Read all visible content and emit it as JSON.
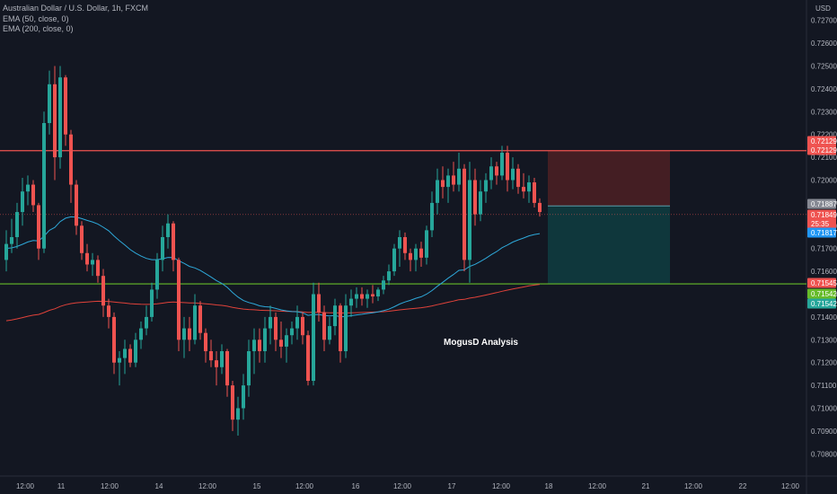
{
  "legend": {
    "symbol": "Australian Dollar / U.S. Dollar, 1h, FXCM",
    "ema50": "EMA (50, close, 0)",
    "ema200": "EMA (200, close, 0)"
  },
  "watermark": "MogusD Analysis",
  "currency": "USD",
  "colors": {
    "background": "#131722",
    "up": "#26a69a",
    "down": "#ef5350",
    "ema50": "#2ea8d9",
    "ema200": "#e0423a",
    "resistance": "#ef5350",
    "support": "#66bb2a",
    "stop_zone": "#4a1f24",
    "target_zone": "#0f3b3f"
  },
  "chart_data": {
    "type": "candlestick",
    "title": "Australian Dollar / U.S. Dollar, 1h, FXCM",
    "y_axis": {
      "min": 0.7075,
      "max": 0.7275,
      "ticks": [
        "0.72700",
        "0.72600",
        "0.72500",
        "0.72400",
        "0.72300",
        "0.72200",
        "0.72100",
        "0.72000",
        "0.71900",
        "0.71800",
        "0.71700",
        "0.71600",
        "0.71500",
        "0.71400",
        "0.71300",
        "0.71200",
        "0.71100",
        "0.71000",
        "0.70900",
        "0.70800"
      ]
    },
    "x_axis": {
      "ticks": [
        "12:00",
        "11",
        "12:00",
        "14",
        "12:00",
        "15",
        "12:00",
        "16",
        "12:00",
        "17",
        "12:00",
        "18",
        "12:00",
        "21",
        "12:00",
        "22",
        "12:00"
      ]
    },
    "levels": [
      {
        "name": "resistance",
        "price": 0.72129
      },
      {
        "name": "support",
        "price": 0.71545
      }
    ],
    "price_tags": [
      {
        "label": "0.72129",
        "price": 0.72129,
        "color": "#ef5350"
      },
      {
        "label": "0.72129",
        "price": 0.72129,
        "color": "#ef5350"
      },
      {
        "label": "0.71887",
        "price": 0.71887,
        "color": "#868993"
      },
      {
        "label": "0.71849",
        "price": 0.71849,
        "color": "#ef5350"
      },
      {
        "label": "25:35",
        "price": 0.71849,
        "color": "#ef5350"
      },
      {
        "label": "0.71817",
        "price": 0.71817,
        "color": "#2196f3"
      },
      {
        "label": "0.71545",
        "price": 0.71545,
        "color": "#ef5350"
      },
      {
        "label": "0.71542",
        "price": 0.71542,
        "color": "#66bb2a"
      },
      {
        "label": "0.71542",
        "price": 0.71542,
        "color": "#26a69a"
      }
    ],
    "position": {
      "type": "short",
      "entry": 0.71887,
      "stop": 0.72129,
      "target": 0.71545
    },
    "candles": [
      {
        "o": 0.7165,
        "h": 0.7178,
        "l": 0.716,
        "c": 0.7172
      },
      {
        "o": 0.7172,
        "h": 0.7183,
        "l": 0.7168,
        "c": 0.7175
      },
      {
        "o": 0.7175,
        "h": 0.719,
        "l": 0.717,
        "c": 0.7186
      },
      {
        "o": 0.7186,
        "h": 0.7201,
        "l": 0.718,
        "c": 0.7195
      },
      {
        "o": 0.7195,
        "h": 0.7202,
        "l": 0.7189,
        "c": 0.7198
      },
      {
        "o": 0.7198,
        "h": 0.72,
        "l": 0.7186,
        "c": 0.7189
      },
      {
        "o": 0.7189,
        "h": 0.719,
        "l": 0.7165,
        "c": 0.717
      },
      {
        "o": 0.717,
        "h": 0.723,
        "l": 0.7168,
        "c": 0.7225
      },
      {
        "o": 0.7225,
        "h": 0.7248,
        "l": 0.722,
        "c": 0.7242
      },
      {
        "o": 0.7242,
        "h": 0.725,
        "l": 0.72,
        "c": 0.721
      },
      {
        "o": 0.721,
        "h": 0.725,
        "l": 0.7205,
        "c": 0.7245
      },
      {
        "o": 0.7245,
        "h": 0.7246,
        "l": 0.7215,
        "c": 0.722
      },
      {
        "o": 0.722,
        "h": 0.7222,
        "l": 0.719,
        "c": 0.7198
      },
      {
        "o": 0.7198,
        "h": 0.72,
        "l": 0.7176,
        "c": 0.718
      },
      {
        "o": 0.718,
        "h": 0.7182,
        "l": 0.7165,
        "c": 0.7168
      },
      {
        "o": 0.7168,
        "h": 0.7172,
        "l": 0.716,
        "c": 0.7163
      },
      {
        "o": 0.7163,
        "h": 0.7168,
        "l": 0.7158,
        "c": 0.7165
      },
      {
        "o": 0.7165,
        "h": 0.7167,
        "l": 0.7155,
        "c": 0.7158
      },
      {
        "o": 0.7158,
        "h": 0.7161,
        "l": 0.714,
        "c": 0.7145
      },
      {
        "o": 0.7145,
        "h": 0.7148,
        "l": 0.7135,
        "c": 0.714
      },
      {
        "o": 0.714,
        "h": 0.7142,
        "l": 0.7115,
        "c": 0.712
      },
      {
        "o": 0.712,
        "h": 0.7125,
        "l": 0.711,
        "c": 0.7122
      },
      {
        "o": 0.7122,
        "h": 0.713,
        "l": 0.7115,
        "c": 0.7126
      },
      {
        "o": 0.7126,
        "h": 0.7128,
        "l": 0.7118,
        "c": 0.712
      },
      {
        "o": 0.712,
        "h": 0.7133,
        "l": 0.7118,
        "c": 0.713
      },
      {
        "o": 0.713,
        "h": 0.7138,
        "l": 0.7126,
        "c": 0.7135
      },
      {
        "o": 0.7135,
        "h": 0.7145,
        "l": 0.7132,
        "c": 0.714
      },
      {
        "o": 0.714,
        "h": 0.7155,
        "l": 0.7138,
        "c": 0.7152
      },
      {
        "o": 0.7152,
        "h": 0.7168,
        "l": 0.7148,
        "c": 0.7165
      },
      {
        "o": 0.7165,
        "h": 0.718,
        "l": 0.716,
        "c": 0.7175
      },
      {
        "o": 0.7175,
        "h": 0.7185,
        "l": 0.717,
        "c": 0.7181
      },
      {
        "o": 0.7181,
        "h": 0.7182,
        "l": 0.716,
        "c": 0.7165
      },
      {
        "o": 0.7165,
        "h": 0.7166,
        "l": 0.7125,
        "c": 0.713
      },
      {
        "o": 0.713,
        "h": 0.714,
        "l": 0.7122,
        "c": 0.7135
      },
      {
        "o": 0.7135,
        "h": 0.714,
        "l": 0.7125,
        "c": 0.713
      },
      {
        "o": 0.713,
        "h": 0.715,
        "l": 0.7128,
        "c": 0.7145
      },
      {
        "o": 0.7145,
        "h": 0.7147,
        "l": 0.713,
        "c": 0.7133
      },
      {
        "o": 0.7133,
        "h": 0.7135,
        "l": 0.712,
        "c": 0.7125
      },
      {
        "o": 0.7125,
        "h": 0.713,
        "l": 0.7118,
        "c": 0.7121
      },
      {
        "o": 0.7121,
        "h": 0.7125,
        "l": 0.711,
        "c": 0.7118
      },
      {
        "o": 0.7118,
        "h": 0.7128,
        "l": 0.7115,
        "c": 0.7125
      },
      {
        "o": 0.7125,
        "h": 0.7126,
        "l": 0.7105,
        "c": 0.711
      },
      {
        "o": 0.711,
        "h": 0.7112,
        "l": 0.709,
        "c": 0.7095
      },
      {
        "o": 0.7095,
        "h": 0.7105,
        "l": 0.7088,
        "c": 0.71
      },
      {
        "o": 0.71,
        "h": 0.7115,
        "l": 0.7095,
        "c": 0.711
      },
      {
        "o": 0.711,
        "h": 0.713,
        "l": 0.7105,
        "c": 0.7125
      },
      {
        "o": 0.7125,
        "h": 0.7135,
        "l": 0.7115,
        "c": 0.713
      },
      {
        "o": 0.713,
        "h": 0.7135,
        "l": 0.712,
        "c": 0.7125
      },
      {
        "o": 0.7125,
        "h": 0.714,
        "l": 0.712,
        "c": 0.7135
      },
      {
        "o": 0.7135,
        "h": 0.7145,
        "l": 0.7128,
        "c": 0.714
      },
      {
        "o": 0.714,
        "h": 0.7142,
        "l": 0.7125,
        "c": 0.713
      },
      {
        "o": 0.713,
        "h": 0.7138,
        "l": 0.7122,
        "c": 0.7127
      },
      {
        "o": 0.7127,
        "h": 0.7135,
        "l": 0.712,
        "c": 0.7132
      },
      {
        "o": 0.7132,
        "h": 0.7138,
        "l": 0.7128,
        "c": 0.7135
      },
      {
        "o": 0.7135,
        "h": 0.7145,
        "l": 0.713,
        "c": 0.714
      },
      {
        "o": 0.714,
        "h": 0.7142,
        "l": 0.7128,
        "c": 0.7132
      },
      {
        "o": 0.7132,
        "h": 0.7134,
        "l": 0.711,
        "c": 0.7112
      },
      {
        "o": 0.7112,
        "h": 0.7155,
        "l": 0.711,
        "c": 0.715
      },
      {
        "o": 0.715,
        "h": 0.7155,
        "l": 0.7138,
        "c": 0.7142
      },
      {
        "o": 0.7142,
        "h": 0.7145,
        "l": 0.7125,
        "c": 0.713
      },
      {
        "o": 0.713,
        "h": 0.714,
        "l": 0.7128,
        "c": 0.7136
      },
      {
        "o": 0.7136,
        "h": 0.7148,
        "l": 0.7132,
        "c": 0.7145
      },
      {
        "o": 0.7145,
        "h": 0.7146,
        "l": 0.712,
        "c": 0.7125
      },
      {
        "o": 0.7125,
        "h": 0.715,
        "l": 0.7122,
        "c": 0.7145
      },
      {
        "o": 0.7145,
        "h": 0.7152,
        "l": 0.714,
        "c": 0.7148
      },
      {
        "o": 0.7148,
        "h": 0.7153,
        "l": 0.7144,
        "c": 0.715
      },
      {
        "o": 0.715,
        "h": 0.7153,
        "l": 0.7145,
        "c": 0.7148
      },
      {
        "o": 0.7148,
        "h": 0.7152,
        "l": 0.7144,
        "c": 0.715
      },
      {
        "o": 0.715,
        "h": 0.7154,
        "l": 0.7146,
        "c": 0.7149
      },
      {
        "o": 0.7149,
        "h": 0.7153,
        "l": 0.7147,
        "c": 0.7152
      },
      {
        "o": 0.7152,
        "h": 0.7158,
        "l": 0.715,
        "c": 0.7156
      },
      {
        "o": 0.7156,
        "h": 0.7163,
        "l": 0.7154,
        "c": 0.716
      },
      {
        "o": 0.716,
        "h": 0.7172,
        "l": 0.7158,
        "c": 0.717
      },
      {
        "o": 0.717,
        "h": 0.7178,
        "l": 0.7162,
        "c": 0.7175
      },
      {
        "o": 0.7175,
        "h": 0.7177,
        "l": 0.7165,
        "c": 0.7168
      },
      {
        "o": 0.7168,
        "h": 0.717,
        "l": 0.716,
        "c": 0.7165
      },
      {
        "o": 0.7165,
        "h": 0.7172,
        "l": 0.716,
        "c": 0.717
      },
      {
        "o": 0.717,
        "h": 0.7173,
        "l": 0.7162,
        "c": 0.7166
      },
      {
        "o": 0.7166,
        "h": 0.718,
        "l": 0.7163,
        "c": 0.7178
      },
      {
        "o": 0.7178,
        "h": 0.7195,
        "l": 0.7175,
        "c": 0.719
      },
      {
        "o": 0.719,
        "h": 0.7205,
        "l": 0.7185,
        "c": 0.72
      },
      {
        "o": 0.72,
        "h": 0.7206,
        "l": 0.7192,
        "c": 0.7197
      },
      {
        "o": 0.7197,
        "h": 0.7205,
        "l": 0.719,
        "c": 0.7202
      },
      {
        "o": 0.7202,
        "h": 0.7208,
        "l": 0.7195,
        "c": 0.7198
      },
      {
        "o": 0.7198,
        "h": 0.7212,
        "l": 0.7195,
        "c": 0.7205
      },
      {
        "o": 0.7205,
        "h": 0.7207,
        "l": 0.716,
        "c": 0.7165
      },
      {
        "o": 0.7165,
        "h": 0.7208,
        "l": 0.7155,
        "c": 0.72
      },
      {
        "o": 0.72,
        "h": 0.7205,
        "l": 0.718,
        "c": 0.7185
      },
      {
        "o": 0.7185,
        "h": 0.72,
        "l": 0.7182,
        "c": 0.7195
      },
      {
        "o": 0.7195,
        "h": 0.7203,
        "l": 0.719,
        "c": 0.72
      },
      {
        "o": 0.72,
        "h": 0.721,
        "l": 0.7196,
        "c": 0.7206
      },
      {
        "o": 0.7206,
        "h": 0.7208,
        "l": 0.7198,
        "c": 0.7202
      },
      {
        "o": 0.7202,
        "h": 0.7215,
        "l": 0.72,
        "c": 0.7212
      },
      {
        "o": 0.7212,
        "h": 0.7215,
        "l": 0.7195,
        "c": 0.72
      },
      {
        "o": 0.72,
        "h": 0.721,
        "l": 0.7196,
        "c": 0.7205
      },
      {
        "o": 0.7205,
        "h": 0.7207,
        "l": 0.7194,
        "c": 0.7197
      },
      {
        "o": 0.7197,
        "h": 0.7203,
        "l": 0.7192,
        "c": 0.7195
      },
      {
        "o": 0.7195,
        "h": 0.7202,
        "l": 0.719,
        "c": 0.7199
      },
      {
        "o": 0.7199,
        "h": 0.7201,
        "l": 0.7188,
        "c": 0.719
      },
      {
        "o": 0.719,
        "h": 0.7192,
        "l": 0.7184,
        "c": 0.7186
      }
    ]
  }
}
